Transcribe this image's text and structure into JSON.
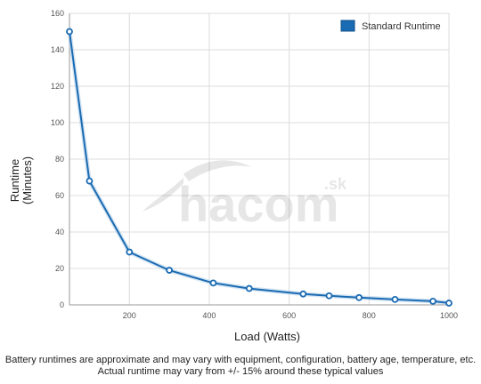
{
  "chart_data": {
    "type": "line",
    "xlabel": "Load (Watts)",
    "ylabel_lines": [
      "Runtime",
      "(Minutes)"
    ],
    "xlim": [
      50,
      1000
    ],
    "ylim": [
      0,
      160
    ],
    "x_ticks": [
      200,
      400,
      600,
      800,
      1000
    ],
    "y_ticks": [
      0,
      20,
      40,
      60,
      80,
      100,
      120,
      140,
      160
    ],
    "grid": true,
    "legend_position": "top-right",
    "series": [
      {
        "name": "Standard Runtime",
        "color": "#1a6bb3",
        "x": [
          50,
          100,
          200,
          300,
          410,
          500,
          635,
          700,
          775,
          865,
          960,
          1000
        ],
        "y": [
          150,
          68,
          29,
          19,
          12,
          9,
          6,
          5,
          4,
          3,
          2,
          1
        ]
      }
    ]
  },
  "watermark": {
    "text": "hacom",
    "suffix": ".sk"
  },
  "footnote": {
    "line1": "Battery runtimes are approximate and may vary with equipment, configuration, battery age, temperature, etc.",
    "line2": "Actual runtime may vary from +/- 15% around these typical values"
  }
}
